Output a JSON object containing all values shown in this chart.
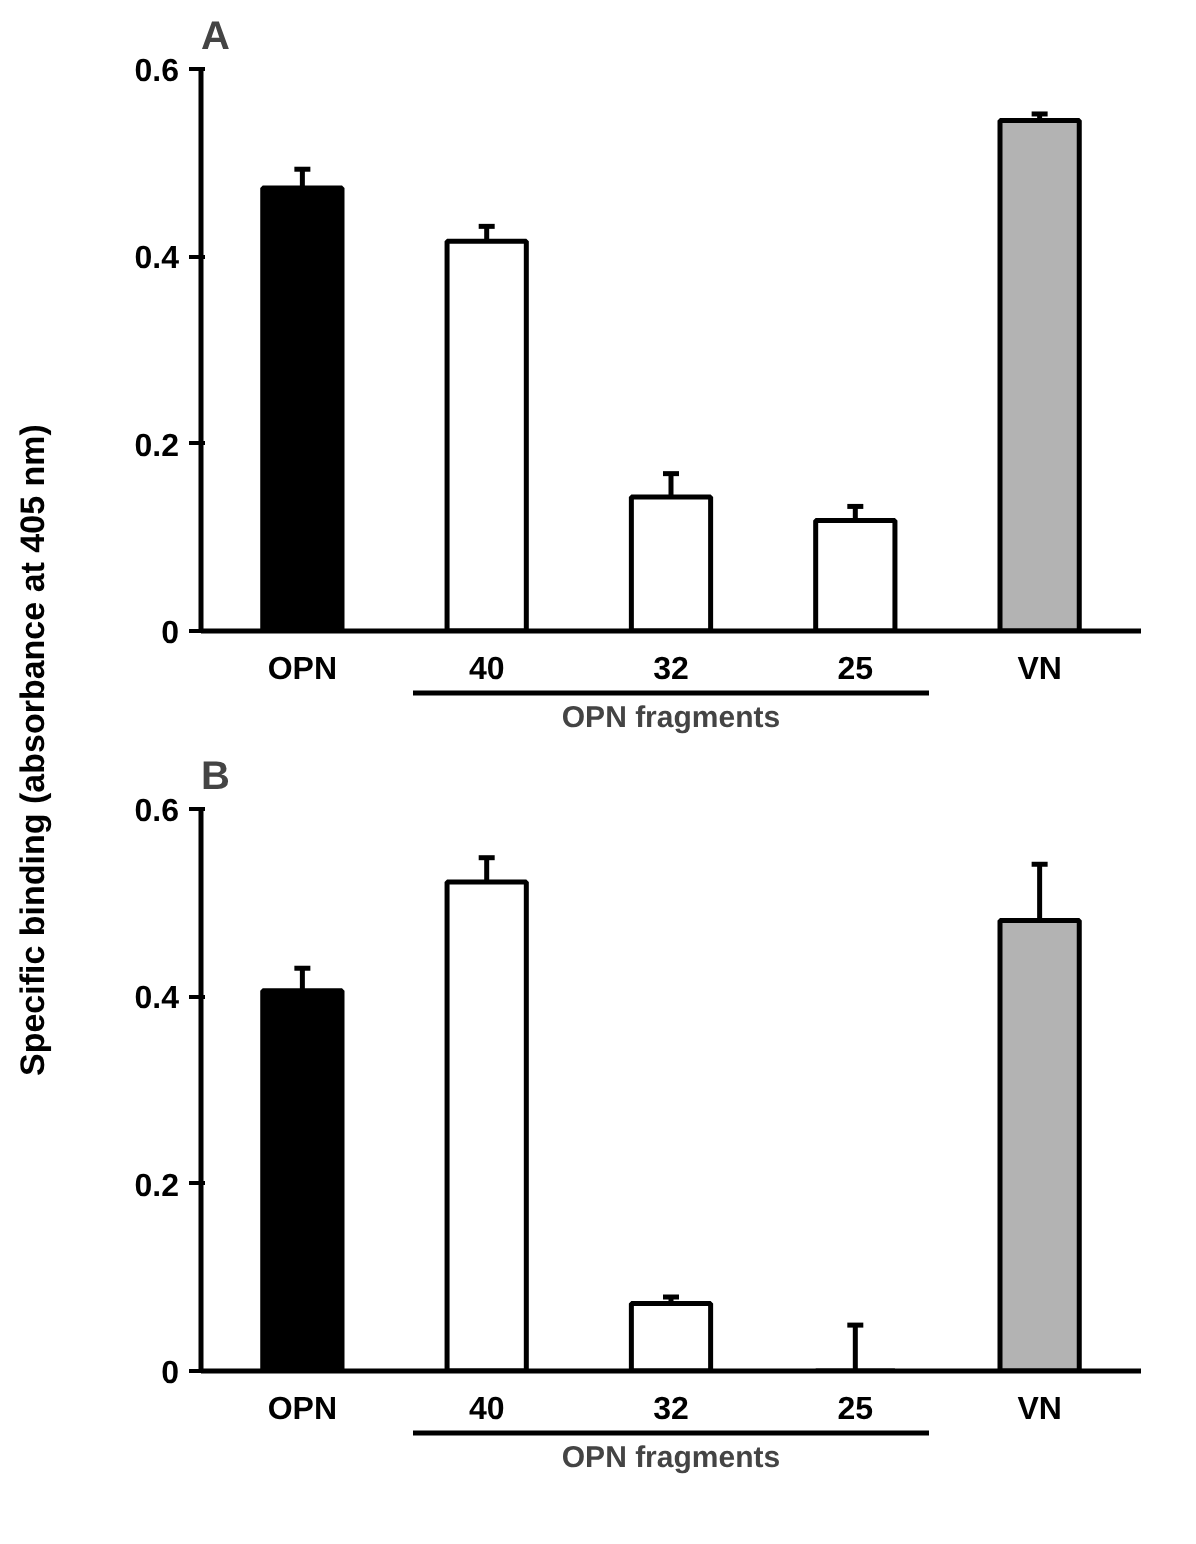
{
  "chart_data": [
    {
      "type": "bar",
      "title": "A",
      "ylabel": "Specific binding (absorbance at 405 nm)",
      "xlabel": "OPN fragments",
      "categories": [
        "OPN",
        "40",
        "32",
        "25",
        "VN"
      ],
      "values": [
        0.473,
        0.416,
        0.143,
        0.118,
        0.545
      ],
      "errors": [
        [
          0.473,
          0.493
        ],
        [
          0.416,
          0.432
        ],
        [
          0.143,
          0.168
        ],
        [
          0.118,
          0.133
        ],
        [
          0.545,
          0.552
        ]
      ],
      "colors": [
        "#000000",
        "#ffffff",
        "#ffffff",
        "#ffffff",
        "#b3b3b3"
      ],
      "ylim": [
        0,
        0.6
      ],
      "yticks": [
        0,
        0.2,
        0.4,
        0.6
      ],
      "grid": false
    },
    {
      "type": "bar",
      "title": "B",
      "xlabel": "OPN fragments",
      "categories": [
        "OPN",
        "40",
        "32",
        "25",
        "VN"
      ],
      "values": [
        0.406,
        0.522,
        0.072,
        0,
        0.481
      ],
      "errors": [
        [
          0.406,
          0.43
        ],
        [
          0.522,
          0.548
        ],
        [
          0.072,
          0.079
        ],
        [
          0,
          0.049
        ],
        [
          0.481,
          0.541
        ]
      ],
      "colors": [
        "#000000",
        "#ffffff",
        "#ffffff",
        "#ffffff",
        "#b3b3b3"
      ],
      "ylim": [
        0,
        0.6
      ],
      "yticks": [
        0,
        0.2,
        0.4,
        0.6
      ],
      "grid": false
    }
  ]
}
